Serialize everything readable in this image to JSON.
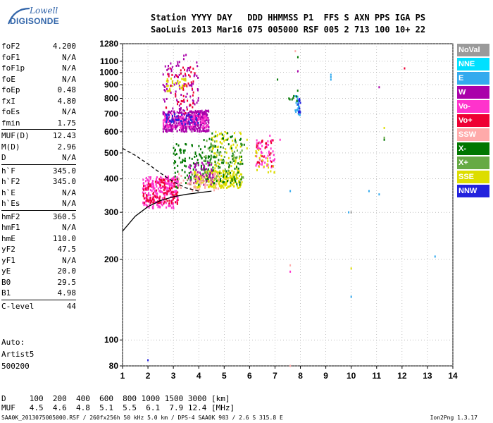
{
  "logo": {
    "brand_top": "Lowell",
    "brand_bottom": "DIGISONDE"
  },
  "header": {
    "line1": "Station YYYY DAY   DDD HHMMSS P1  FFS S AXN PPS IGA PS",
    "line2": "SaoLuis 2013 Mar16 075 005000 RSF 005 2 713 100 10+ 22"
  },
  "params": [
    {
      "k": "foF2",
      "v": "4.200"
    },
    {
      "k": "foF1",
      "v": "N/A"
    },
    {
      "k": "foF1p",
      "v": "N/A"
    },
    {
      "k": "foE",
      "v": "N/A"
    },
    {
      "k": "foEp",
      "v": "0.48"
    },
    {
      "k": "fxI",
      "v": "4.80"
    },
    {
      "k": "foEs",
      "v": "N/A"
    },
    {
      "k": "fmin",
      "v": "1.75"
    },
    {
      "k": "MUF(D)",
      "v": "12.43",
      "sep": true
    },
    {
      "k": "M(D)",
      "v": "2.96"
    },
    {
      "k": "D",
      "v": "N/A"
    },
    {
      "k": "h`F",
      "v": "345.0",
      "sep": true
    },
    {
      "k": "h`F2",
      "v": "345.0"
    },
    {
      "k": "h`E",
      "v": "N/A"
    },
    {
      "k": "h`Es",
      "v": "N/A"
    },
    {
      "k": "hmF2",
      "v": "360.5",
      "sep": true
    },
    {
      "k": "hmF1",
      "v": "N/A"
    },
    {
      "k": "hmE",
      "v": "110.0"
    },
    {
      "k": "yF2",
      "v": "47.5"
    },
    {
      "k": "yF1",
      "v": "N/A"
    },
    {
      "k": "yE",
      "v": "20.0"
    },
    {
      "k": "B0",
      "v": "29.5"
    },
    {
      "k": "B1",
      "v": "4.98"
    },
    {
      "k": "C-level",
      "v": "44",
      "sep": true
    }
  ],
  "auto": {
    "line1": "Auto:",
    "line2": "Artist5",
    "line3": "500200"
  },
  "legend": [
    {
      "name": "NoVal",
      "color": "#9a9a9a"
    },
    {
      "name": "NNE",
      "color": "#00e0ff"
    },
    {
      "name": "E",
      "color": "#33aaee"
    },
    {
      "name": "W",
      "color": "#aa00aa"
    },
    {
      "name": "Vo-",
      "color": "#ff33cc"
    },
    {
      "name": "Vo+",
      "color": "#ee0033"
    },
    {
      "name": "SSW",
      "color": "#ffaaaa"
    },
    {
      "name": "X-",
      "color": "#007700"
    },
    {
      "name": "X+",
      "color": "#66aa44"
    },
    {
      "name": "SSE",
      "color": "#dddd00"
    },
    {
      "name": "NNW",
      "color": "#2222dd"
    }
  ],
  "footer": {
    "row1": "D     100  200  400  600  800 1000 1500 3000 [km]",
    "row2": "MUF   4.5  4.6  4.8  5.1  5.5  6.1  7.9 12.4 [MHz]",
    "left": "SAA0K_2013075005000.RSF / 260fx256h 50 kHz 5.0 km / DPS-4 SAA0K 903 / 2.6 S 315.8 E",
    "right": "Ion2Png 1.3.17"
  },
  "chart_data": {
    "type": "scatter",
    "xlim": [
      1,
      14
    ],
    "ylim": [
      80,
      1280
    ],
    "y_scale": "log",
    "x_ticks": [
      1,
      2,
      3,
      4,
      5,
      6,
      7,
      8,
      9,
      10,
      11,
      12,
      13,
      14
    ],
    "y_ticks": [
      80,
      100,
      200,
      300,
      400,
      500,
      600,
      700,
      800,
      900,
      1000,
      1100,
      1280
    ],
    "grid": true,
    "legend_position": "right",
    "clusters": [
      {
        "series": "W",
        "x": [
          2.6,
          4.4
        ],
        "y": [
          600,
          720
        ],
        "n": 380
      },
      {
        "series": "Vo-",
        "x": [
          2.6,
          4.4
        ],
        "y": [
          620,
          700
        ],
        "n": 120
      },
      {
        "series": "W",
        "x": [
          2.6,
          4.0
        ],
        "y": [
          720,
          1100
        ],
        "n": 90
      },
      {
        "series": "Vo+",
        "x": [
          2.7,
          3.9
        ],
        "y": [
          700,
          1050
        ],
        "n": 50
      },
      {
        "series": "NNW",
        "x": [
          2.7,
          4.0
        ],
        "y": [
          640,
          700
        ],
        "n": 40
      },
      {
        "series": "SSE",
        "x": [
          2.7,
          3.5
        ],
        "y": [
          850,
          950
        ],
        "n": 30
      },
      {
        "series": "Vo-",
        "x": [
          1.8,
          3.2
        ],
        "y": [
          310,
          410
        ],
        "n": 260
      },
      {
        "series": "Vo+",
        "x": [
          1.8,
          3.2
        ],
        "y": [
          320,
          400
        ],
        "n": 110
      },
      {
        "series": "X-",
        "x": [
          3.0,
          4.6
        ],
        "y": [
          370,
          540
        ],
        "n": 120
      },
      {
        "series": "SSE",
        "x": [
          3.8,
          5.7
        ],
        "y": [
          370,
          430
        ],
        "n": 200
      },
      {
        "series": "SSE",
        "x": [
          4.5,
          5.7
        ],
        "y": [
          420,
          600
        ],
        "n": 80
      },
      {
        "series": "X-",
        "x": [
          4.2,
          5.8
        ],
        "y": [
          380,
          600
        ],
        "n": 90
      },
      {
        "series": "X+",
        "x": [
          4.2,
          5.8
        ],
        "y": [
          400,
          560
        ],
        "n": 60
      },
      {
        "series": "W",
        "x": [
          3.6,
          4.6
        ],
        "y": [
          380,
          460
        ],
        "n": 60
      },
      {
        "series": "SSW",
        "x": [
          3.2,
          4.8
        ],
        "y": [
          360,
          420
        ],
        "n": 60
      },
      {
        "series": "Vo-",
        "x": [
          6.2,
          7.0
        ],
        "y": [
          440,
          560
        ],
        "n": 50
      },
      {
        "series": "Vo+",
        "x": [
          6.2,
          7.0
        ],
        "y": [
          440,
          560
        ],
        "n": 25
      },
      {
        "series": "SSE",
        "x": [
          6.2,
          7.0
        ],
        "y": [
          420,
          520
        ],
        "n": 20
      },
      {
        "series": "E",
        "x": [
          7.8,
          8.0
        ],
        "y": [
          680,
          820
        ],
        "n": 25
      },
      {
        "series": "NNW",
        "x": [
          7.9,
          8.0
        ],
        "y": [
          700,
          810
        ],
        "n": 12
      },
      {
        "series": "X-",
        "x": [
          7.5,
          7.9
        ],
        "y": [
          780,
          860
        ],
        "n": 8
      },
      {
        "series": "W",
        "x": [
          3.4,
          3.6
        ],
        "y": [
          1120,
          1180
        ],
        "n": 3
      }
    ],
    "points": [
      {
        "x": 12.1,
        "y": 1035,
        "series": "Vo+"
      },
      {
        "x": 11.1,
        "y": 880,
        "series": "W"
      },
      {
        "x": 11.3,
        "y": 620,
        "series": "SSE"
      },
      {
        "x": 11.3,
        "y": 560,
        "series": "X-"
      },
      {
        "x": 11.3,
        "y": 570,
        "series": "X+"
      },
      {
        "x": 7.8,
        "y": 1200,
        "series": "SSW"
      },
      {
        "x": 7.9,
        "y": 1140,
        "series": "X-"
      },
      {
        "x": 7.9,
        "y": 1010,
        "series": "W"
      },
      {
        "x": 7.6,
        "y": 360,
        "series": "E"
      },
      {
        "x": 7.6,
        "y": 190,
        "series": "SSW"
      },
      {
        "x": 7.6,
        "y": 180,
        "series": "Vo-"
      },
      {
        "x": 7.6,
        "y": 80,
        "series": "SSW"
      },
      {
        "x": 7.1,
        "y": 940,
        "series": "X-"
      },
      {
        "x": 7.2,
        "y": 560,
        "series": "Vo-"
      },
      {
        "x": 10.0,
        "y": 185,
        "series": "SSE"
      },
      {
        "x": 10.0,
        "y": 145,
        "series": "E"
      },
      {
        "x": 10.0,
        "y": 300,
        "series": "NoVal"
      },
      {
        "x": 9.9,
        "y": 300,
        "series": "E"
      },
      {
        "x": 10.7,
        "y": 360,
        "series": "E"
      },
      {
        "x": 11.1,
        "y": 350,
        "series": "E"
      },
      {
        "x": 13.3,
        "y": 205,
        "series": "E"
      },
      {
        "x": 9.2,
        "y": 940,
        "series": "E"
      },
      {
        "x": 9.2,
        "y": 960,
        "series": "E"
      },
      {
        "x": 9.2,
        "y": 980,
        "series": "E"
      },
      {
        "x": 2.0,
        "y": 84,
        "series": "NNW"
      },
      {
        "x": 5.9,
        "y": 520,
        "series": "SSE"
      },
      {
        "x": 5.9,
        "y": 560,
        "series": "SSE"
      },
      {
        "x": 6.8,
        "y": 580,
        "series": "Vo-"
      }
    ],
    "curves": [
      {
        "style": "solid",
        "x": [
          1.0,
          1.5,
          2.0,
          2.5,
          3.0,
          3.5,
          4.0,
          4.5
        ],
        "y": [
          255,
          290,
          315,
          332,
          343,
          350,
          355,
          360
        ]
      },
      {
        "style": "dashed",
        "x": [
          1.0,
          1.5,
          2.0,
          2.5,
          3.0,
          3.5,
          4.0
        ],
        "y": [
          520,
          490,
          455,
          420,
          390,
          370,
          360
        ]
      }
    ]
  }
}
